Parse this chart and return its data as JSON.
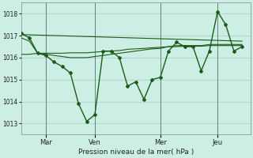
{
  "bg_color": "#cceee4",
  "line_color": "#1a5c1a",
  "ylim": [
    1012.5,
    1018.5
  ],
  "yticks": [
    1013,
    1014,
    1015,
    1016,
    1017,
    1018
  ],
  "xlabel": "Pression niveau de la mer( hPa )",
  "xtick_labels": [
    "Mar",
    "Ven",
    "Mer",
    "Jeu"
  ],
  "xtick_positions": [
    3,
    9,
    17,
    24
  ],
  "xlim": [
    0,
    28
  ],
  "vline_positions": [
    3,
    9,
    17,
    24
  ],
  "line_main": [
    1017.1,
    1016.9,
    1016.2,
    1016.1,
    1015.8,
    1015.6,
    1015.3,
    1013.9,
    1013.1,
    1013.4,
    1016.3,
    1016.3,
    1016.0,
    1014.7,
    1014.9,
    1014.1,
    1015.0,
    1015.1,
    1016.3,
    1016.7,
    1016.5,
    1016.5,
    1015.4,
    1016.3,
    1018.1,
    1017.5,
    1016.3,
    1016.5
  ],
  "line_flat1": [
    1016.15,
    1016.15,
    1016.2,
    1016.2,
    1016.2,
    1016.2,
    1016.22,
    1016.22,
    1016.22,
    1016.25,
    1016.28,
    1016.3,
    1016.32,
    1016.38,
    1016.4,
    1016.42,
    1016.45,
    1016.47,
    1016.5,
    1016.5,
    1016.52,
    1016.52,
    1016.52,
    1016.55,
    1016.55,
    1016.55,
    1016.55,
    1016.55
  ],
  "line_flat2": [
    1016.9,
    1016.75,
    1016.2,
    1016.15,
    1016.1,
    1016.05,
    1016.0,
    1016.0,
    1016.0,
    1016.05,
    1016.1,
    1016.15,
    1016.2,
    1016.25,
    1016.3,
    1016.35,
    1016.4,
    1016.42,
    1016.5,
    1016.55,
    1016.55,
    1016.55,
    1016.55,
    1016.6,
    1016.6,
    1016.6,
    1016.6,
    1016.6
  ],
  "line_trend": [
    [
      0,
      27
    ],
    [
      1017.05,
      1016.75
    ]
  ]
}
